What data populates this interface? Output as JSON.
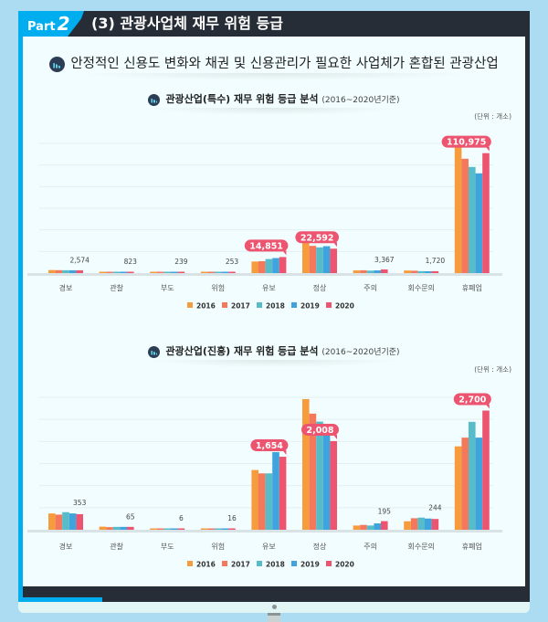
{
  "header": {
    "part_label": "Part",
    "part_number": "2",
    "title": "(3) 관광사업체 재무 위험 등급"
  },
  "subtitle": "안정적인 신용도 변화와 채권 및 신용관리가 필요한 사업체가 혼합된 관광산업",
  "colors": {
    "2016": "#f79c3c",
    "2017": "#f4795c",
    "2018": "#57bcc9",
    "2019": "#3fa3dd",
    "2020": "#ec5470",
    "frame": "#262d36",
    "accent": "#00aeef"
  },
  "chart_data": [
    {
      "type": "bar",
      "title": "관광산업(특수) 재무 위험 등급 분석",
      "title_period": "(2016~2020년기준)",
      "unit": "(단위 : 개소)",
      "categories": [
        "경보",
        "관찰",
        "부도",
        "위험",
        "유보",
        "정상",
        "주의",
        "회수문의",
        "휴폐업"
      ],
      "ylim": [
        0,
        120000
      ],
      "ystep": 20000,
      "series": [
        {
          "name": "2016",
          "values": [
            2800,
            700,
            230,
            250,
            10700,
            30000,
            2500,
            2400,
            126000
          ]
        },
        {
          "name": "2017",
          "values": [
            2700,
            720,
            235,
            250,
            11000,
            25200,
            2600,
            2200,
            105800
          ]
        },
        {
          "name": "2018",
          "values": [
            2650,
            760,
            238,
            252,
            13000,
            23800,
            2300,
            1800,
            98200
          ]
        },
        {
          "name": "2019",
          "values": [
            2600,
            790,
            239,
            253,
            13900,
            24900,
            2500,
            1700,
            92300
          ]
        },
        {
          "name": "2020",
          "values": [
            2574,
            823,
            239,
            253,
            14851,
            22592,
            3367,
            1720,
            110975
          ]
        }
      ],
      "value_labels": [
        "2,574",
        "823",
        "239",
        "253",
        "14,851",
        "22,592",
        "3,367",
        "1,720",
        "110,975"
      ],
      "highlighted": [
        4,
        5,
        8
      ],
      "legend": [
        "2016",
        "2017",
        "2018",
        "2019",
        "2020"
      ],
      "legend_position": "bottom"
    },
    {
      "type": "bar",
      "title": "관광산업(진흥) 재무 위험 등급 분석",
      "title_period": "(2016~2020년기준)",
      "unit": "(단위 : 개소)",
      "categories": [
        "경보",
        "관찰",
        "부도",
        "위험",
        "유보",
        "정상",
        "주의",
        "회수문의",
        "휴폐업"
      ],
      "ylim": [
        0,
        3000
      ],
      "ystep": 500,
      "series": [
        {
          "name": "2016",
          "values": [
            370,
            70,
            6,
            20,
            1353,
            2960,
            96,
            192,
            1889
          ]
        },
        {
          "name": "2017",
          "values": [
            343,
            60,
            6,
            16,
            1277,
            2630,
            110,
            261,
            2087
          ]
        },
        {
          "name": "2018",
          "values": [
            398,
            65,
            6,
            16,
            1277,
            2450,
            96,
            275,
            2444
          ]
        },
        {
          "name": "2019",
          "values": [
            370,
            65,
            6,
            16,
            1758,
            2370,
            144,
            254,
            2087
          ]
        },
        {
          "name": "2020",
          "values": [
            353,
            65,
            6,
            16,
            1654,
            2008,
            195,
            244,
            2700
          ]
        }
      ],
      "value_labels": [
        "353",
        "65",
        "6",
        "16",
        "1,654",
        "2,008",
        "195",
        "244",
        "2,700"
      ],
      "highlighted": [
        4,
        5,
        8
      ],
      "legend": [
        "2016",
        "2017",
        "2018",
        "2019",
        "2020"
      ],
      "legend_position": "bottom"
    }
  ]
}
